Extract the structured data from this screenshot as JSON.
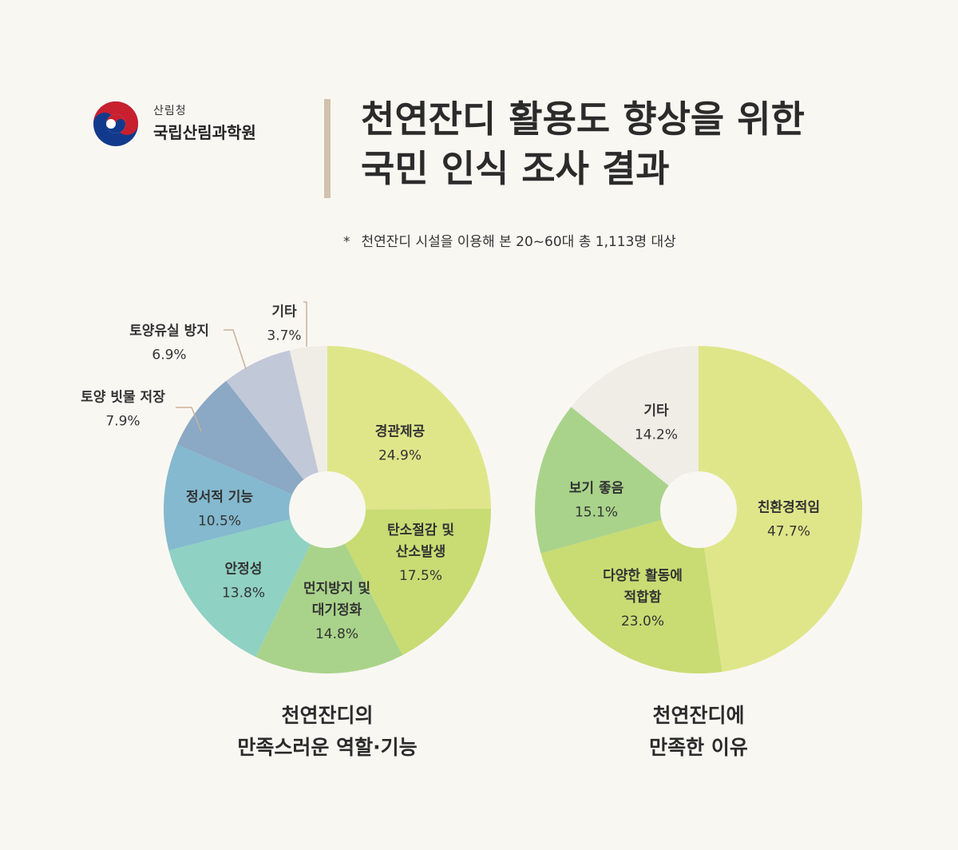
{
  "logo": {
    "sub": "산림청",
    "main": "국립산림과학원"
  },
  "title": {
    "line1": "천연잔디 활용도 향상을 위한",
    "line2": "국민 인식 조사 결과"
  },
  "note": {
    "star": "*",
    "text": "천연잔디 시설을 이용해 본 20~60대 총 1,113명 대상"
  },
  "colors": {
    "background": "#f9f7f2",
    "lime": "#dfe68a",
    "yellowgreen": "#c8dc73",
    "green": "#a9d38a",
    "teal": "#8fd1c3",
    "steelblue": "#84b9cf",
    "blue": "#8ba8c4",
    "lavender": "#c1c8d8",
    "offwhite": "#f0ece6",
    "leader": "#c9b29a"
  },
  "chart_data": [
    {
      "type": "pie",
      "title": "천연잔디의 만족스러운 역할·기능",
      "caption_lines": [
        "천연잔디의",
        "만족스러운 역할·기능"
      ],
      "slices": [
        {
          "label_lines": [
            "경관제공"
          ],
          "value": 24.9,
          "value_text": "24.9%",
          "color": "#dfe68a"
        },
        {
          "label_lines": [
            "탄소절감 및",
            "산소발생"
          ],
          "value": 17.5,
          "value_text": "17.5%",
          "color": "#c8dc73"
        },
        {
          "label_lines": [
            "먼지방지 및",
            "대기정화"
          ],
          "value": 14.8,
          "value_text": "14.8%",
          "color": "#a9d38a"
        },
        {
          "label_lines": [
            "안정성"
          ],
          "value": 13.8,
          "value_text": "13.8%",
          "color": "#8fd1c3"
        },
        {
          "label_lines": [
            "정서적 기능"
          ],
          "value": 10.5,
          "value_text": "10.5%",
          "color": "#84b9cf"
        },
        {
          "label_lines": [
            "토양 빗물 저장"
          ],
          "value": 7.9,
          "value_text": "7.9%",
          "color": "#8ba8c4"
        },
        {
          "label_lines": [
            "토양유실 방지"
          ],
          "value": 6.9,
          "value_text": "6.9%",
          "color": "#c1c8d8"
        },
        {
          "label_lines": [
            "기타"
          ],
          "value": 3.7,
          "value_text": "3.7%",
          "color": "#f0ece6"
        }
      ]
    },
    {
      "type": "pie",
      "title": "천연잔디에 만족한 이유",
      "caption_lines": [
        "천연잔디에",
        "만족한 이유"
      ],
      "slices": [
        {
          "label_lines": [
            "친환경적임"
          ],
          "value": 47.7,
          "value_text": "47.7%",
          "color": "#dfe68a"
        },
        {
          "label_lines": [
            "다양한 활동에",
            "적합함"
          ],
          "value": 23.0,
          "value_text": "23.0%",
          "color": "#c8dc73"
        },
        {
          "label_lines": [
            "보기 좋음"
          ],
          "value": 15.1,
          "value_text": "15.1%",
          "color": "#a9d38a"
        },
        {
          "label_lines": [
            "기타"
          ],
          "value": 14.2,
          "value_text": "14.2%",
          "color": "#f0ece6"
        }
      ]
    }
  ]
}
